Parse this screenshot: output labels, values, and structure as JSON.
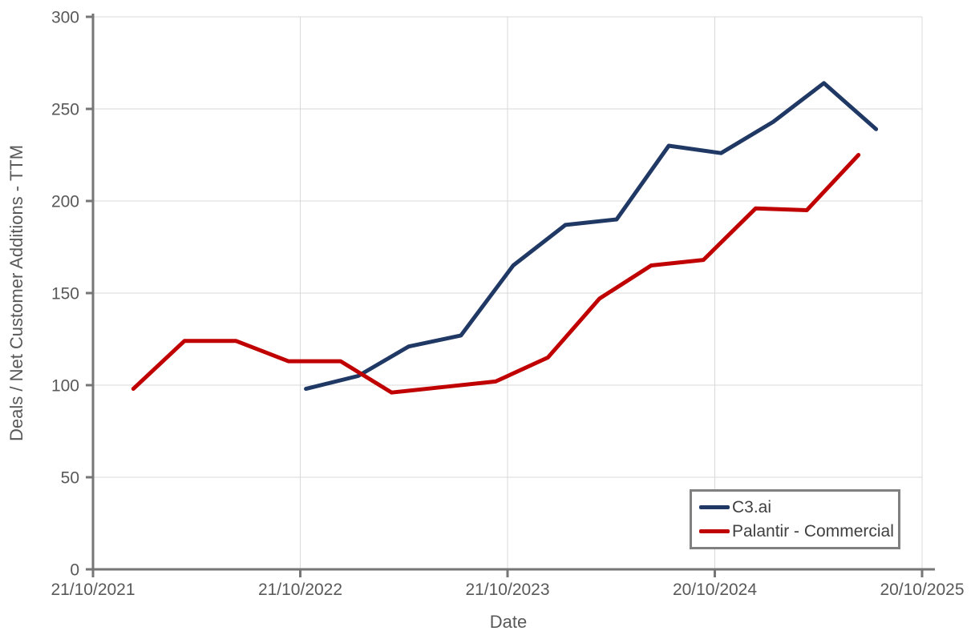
{
  "chart_data": {
    "type": "line",
    "title": "",
    "xlabel": "Date",
    "ylabel": "Deals / Net Customer Additions - TTM",
    "ylim": [
      0,
      300
    ],
    "y_ticks": [
      0,
      50,
      100,
      150,
      200,
      250,
      300
    ],
    "grid": true,
    "legend_position": "inside-bottom-right",
    "x_domain": [
      "2021-10-21",
      "2025-10-20"
    ],
    "x_ticks": [
      {
        "date": "2021-10-21",
        "label": "21/10/2021"
      },
      {
        "date": "2022-10-21",
        "label": "21/10/2022"
      },
      {
        "date": "2023-10-21",
        "label": "21/10/2023"
      },
      {
        "date": "2024-10-20",
        "label": "20/10/2024"
      },
      {
        "date": "2025-10-20",
        "label": "20/10/2025"
      }
    ],
    "series": [
      {
        "name": "C3.ai",
        "color": "#1f3864",
        "points": [
          {
            "date": "2022-10-31",
            "value": 98
          },
          {
            "date": "2023-01-31",
            "value": 105
          },
          {
            "date": "2023-04-30",
            "value": 121
          },
          {
            "date": "2023-07-31",
            "value": 127
          },
          {
            "date": "2023-10-31",
            "value": 165
          },
          {
            "date": "2024-01-31",
            "value": 187
          },
          {
            "date": "2024-04-30",
            "value": 190
          },
          {
            "date": "2024-07-31",
            "value": 230
          },
          {
            "date": "2024-10-31",
            "value": 226
          },
          {
            "date": "2025-01-31",
            "value": 243
          },
          {
            "date": "2025-04-30",
            "value": 264
          },
          {
            "date": "2025-07-31",
            "value": 239
          }
        ]
      },
      {
        "name": "Palantir - Commercial",
        "color": "#c00000",
        "points": [
          {
            "date": "2021-12-31",
            "value": 98
          },
          {
            "date": "2022-03-31",
            "value": 124
          },
          {
            "date": "2022-06-30",
            "value": 124
          },
          {
            "date": "2022-09-30",
            "value": 113
          },
          {
            "date": "2022-12-31",
            "value": 113
          },
          {
            "date": "2023-03-31",
            "value": 96
          },
          {
            "date": "2023-06-30",
            "value": 99
          },
          {
            "date": "2023-09-30",
            "value": 102
          },
          {
            "date": "2023-12-31",
            "value": 115
          },
          {
            "date": "2024-03-31",
            "value": 147
          },
          {
            "date": "2024-06-30",
            "value": 165
          },
          {
            "date": "2024-09-30",
            "value": 168
          },
          {
            "date": "2024-12-31",
            "value": 196
          },
          {
            "date": "2025-03-31",
            "value": 195
          },
          {
            "date": "2025-06-30",
            "value": 225
          }
        ]
      }
    ]
  },
  "styles": {
    "background": "#ffffff",
    "grid_color": "#d9d9d9",
    "axis_color": "#767676",
    "tick_label_color": "#595959",
    "axis_title_color": "#595959",
    "legend_border_color": "#808080",
    "legend_text_color": "#404040",
    "line_width": 5
  }
}
